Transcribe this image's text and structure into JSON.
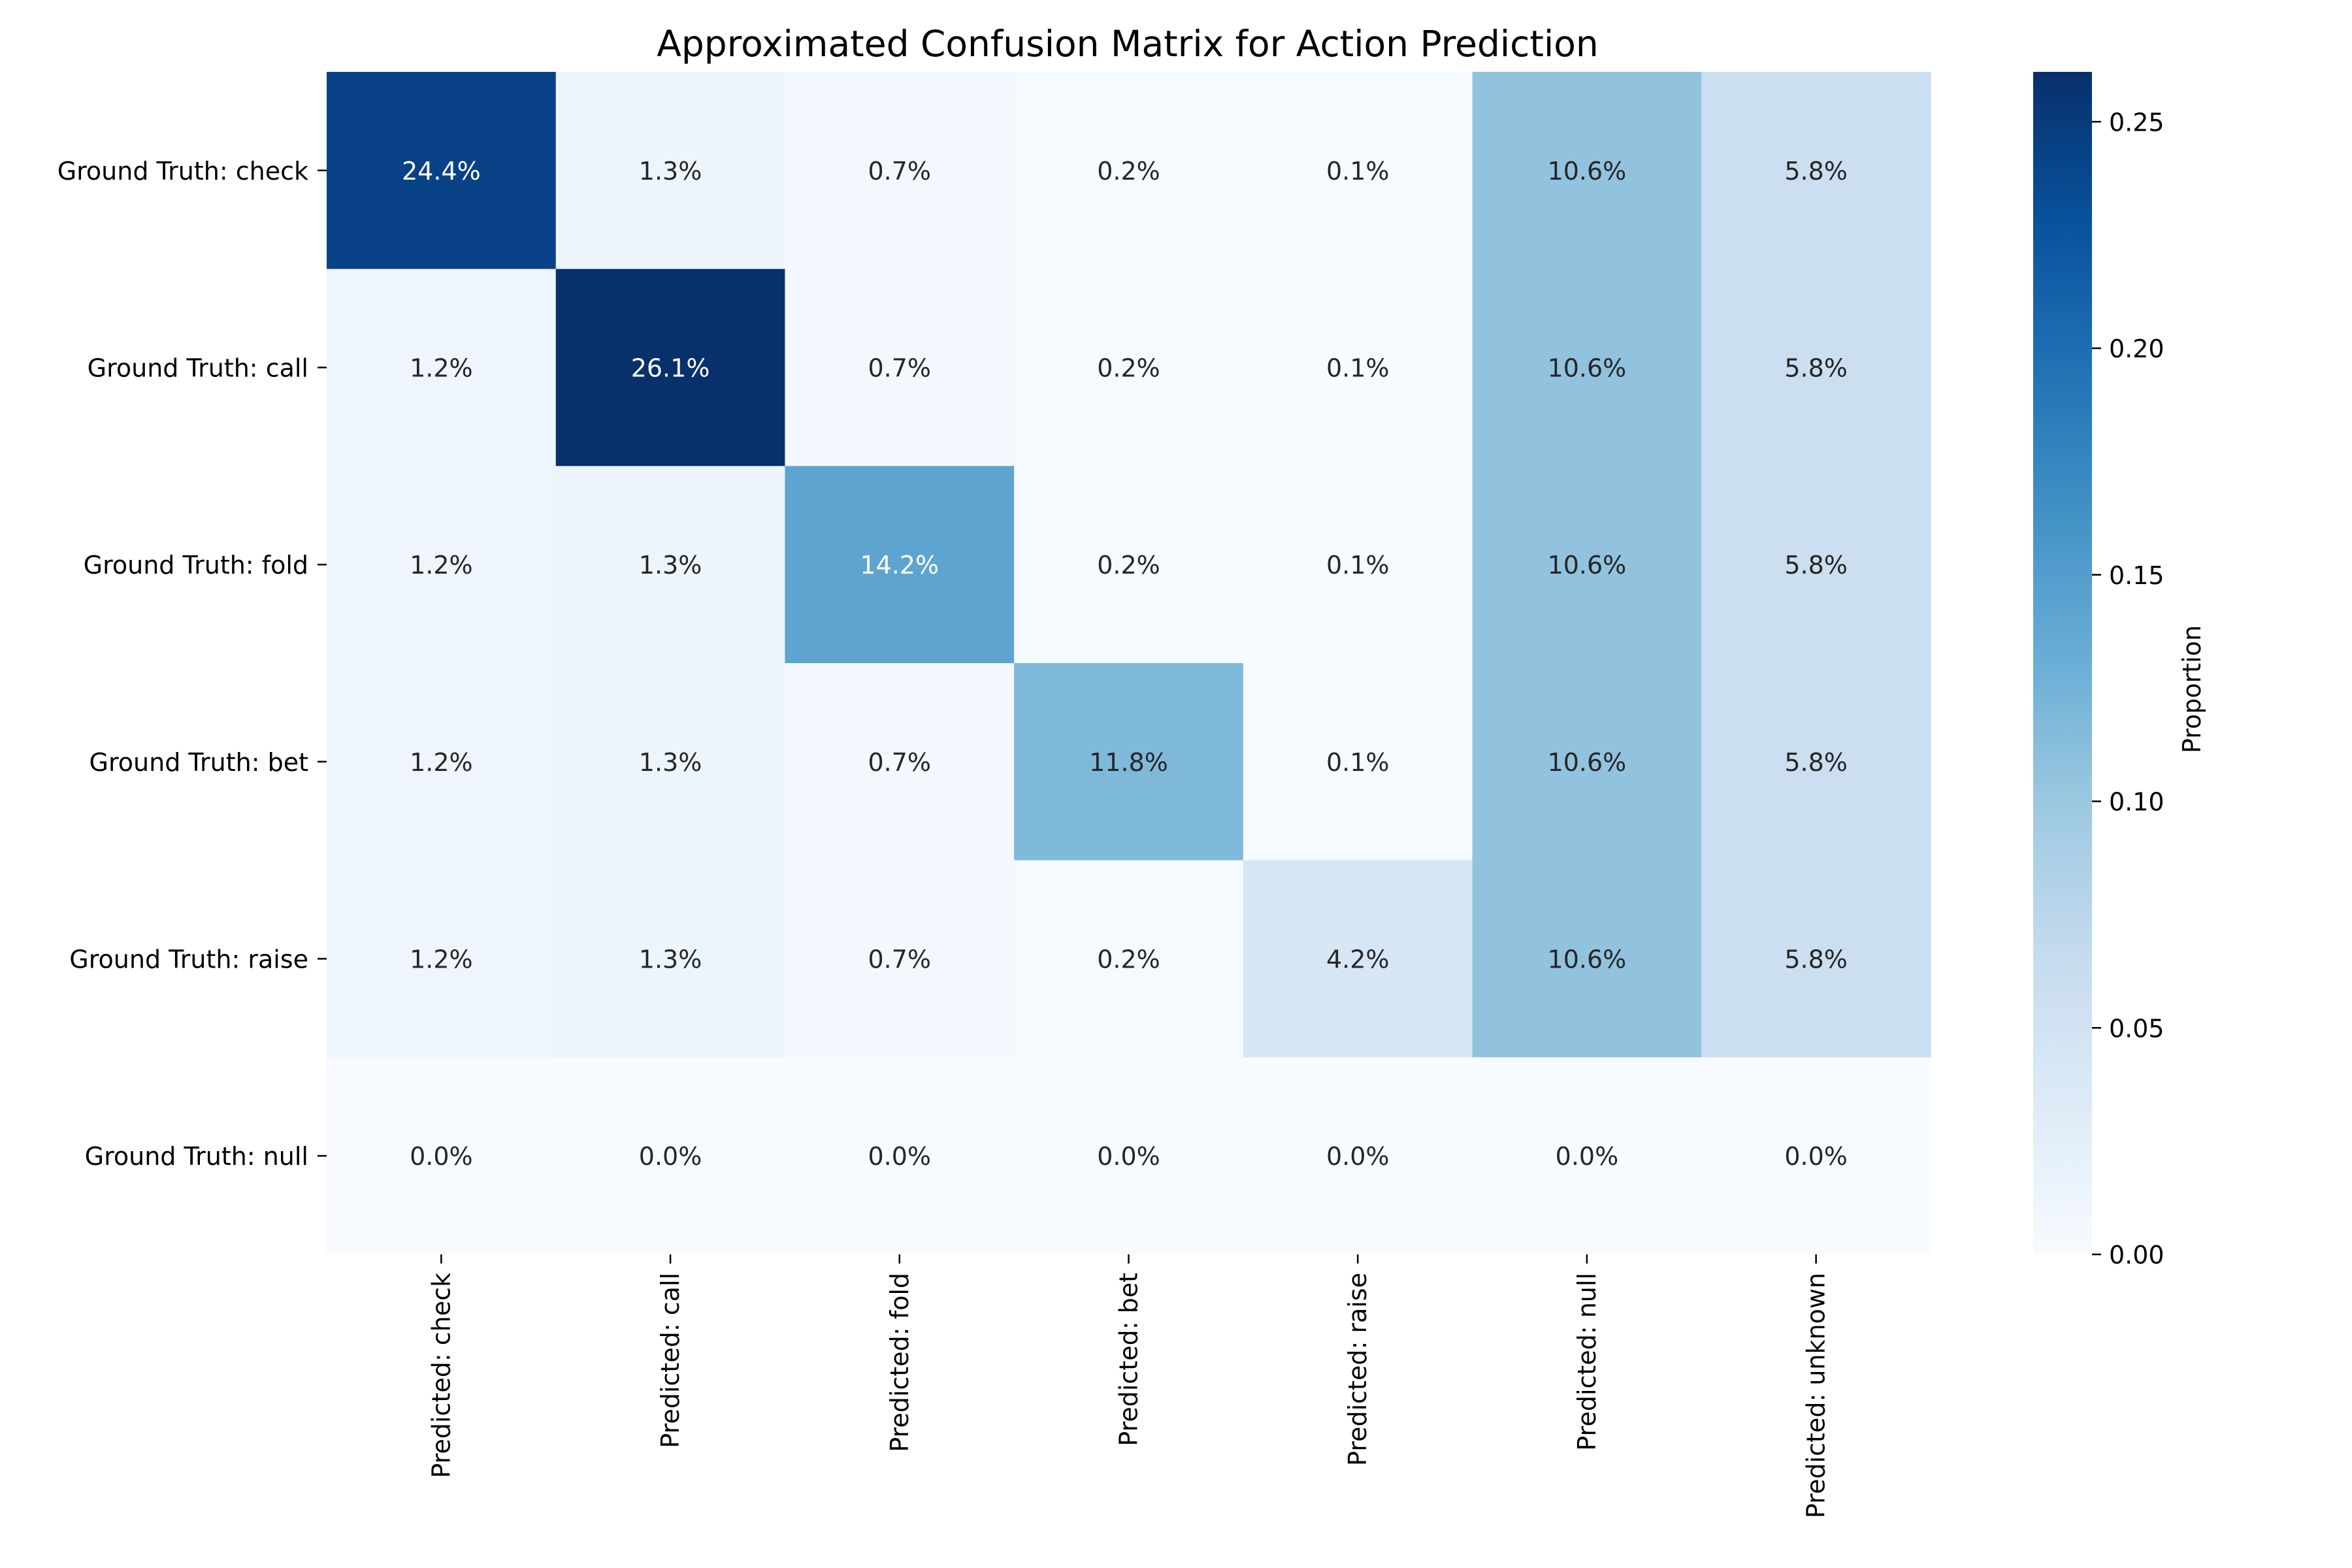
{
  "chart_data": {
    "type": "heatmap",
    "title": "Approximated Confusion Matrix for Action Prediction",
    "row_labels": [
      "Ground Truth: check",
      "Ground Truth: call",
      "Ground Truth: fold",
      "Ground Truth: bet",
      "Ground Truth: raise",
      "Ground Truth: null"
    ],
    "col_labels": [
      "Predicted: check",
      "Predicted: call",
      "Predicted: fold",
      "Predicted: bet",
      "Predicted: raise",
      "Predicted: null",
      "Predicted: unknown"
    ],
    "values": [
      [
        0.244,
        0.013,
        0.007,
        0.002,
        0.001,
        0.106,
        0.058
      ],
      [
        0.012,
        0.261,
        0.007,
        0.002,
        0.001,
        0.106,
        0.058
      ],
      [
        0.012,
        0.013,
        0.142,
        0.002,
        0.001,
        0.106,
        0.058
      ],
      [
        0.012,
        0.013,
        0.007,
        0.118,
        0.001,
        0.106,
        0.058
      ],
      [
        0.012,
        0.013,
        0.007,
        0.002,
        0.042,
        0.106,
        0.058
      ],
      [
        0.0,
        0.0,
        0.0,
        0.0,
        0.0,
        0.0,
        0.0
      ]
    ],
    "annotations": [
      [
        "24.4%",
        "1.3%",
        "0.7%",
        "0.2%",
        "0.1%",
        "10.6%",
        "5.8%"
      ],
      [
        "1.2%",
        "26.1%",
        "0.7%",
        "0.2%",
        "0.1%",
        "10.6%",
        "5.8%"
      ],
      [
        "1.2%",
        "1.3%",
        "14.2%",
        "0.2%",
        "0.1%",
        "10.6%",
        "5.8%"
      ],
      [
        "1.2%",
        "1.3%",
        "0.7%",
        "11.8%",
        "0.1%",
        "10.6%",
        "5.8%"
      ],
      [
        "1.2%",
        "1.3%",
        "0.7%",
        "0.2%",
        "4.2%",
        "10.6%",
        "5.8%"
      ],
      [
        "0.0%",
        "0.0%",
        "0.0%",
        "0.0%",
        "0.0%",
        "0.0%",
        "0.0%"
      ]
    ],
    "colorbar": {
      "label": "Proportion",
      "range": [
        0,
        0.261
      ],
      "ticks": [
        0.0,
        0.05,
        0.1,
        0.15,
        0.2,
        0.25
      ],
      "tick_labels": [
        "0.00",
        "0.05",
        "0.10",
        "0.15",
        "0.20",
        "0.25"
      ],
      "colormap": "Blues"
    },
    "grid": false,
    "legend": "colorbar-right"
  }
}
